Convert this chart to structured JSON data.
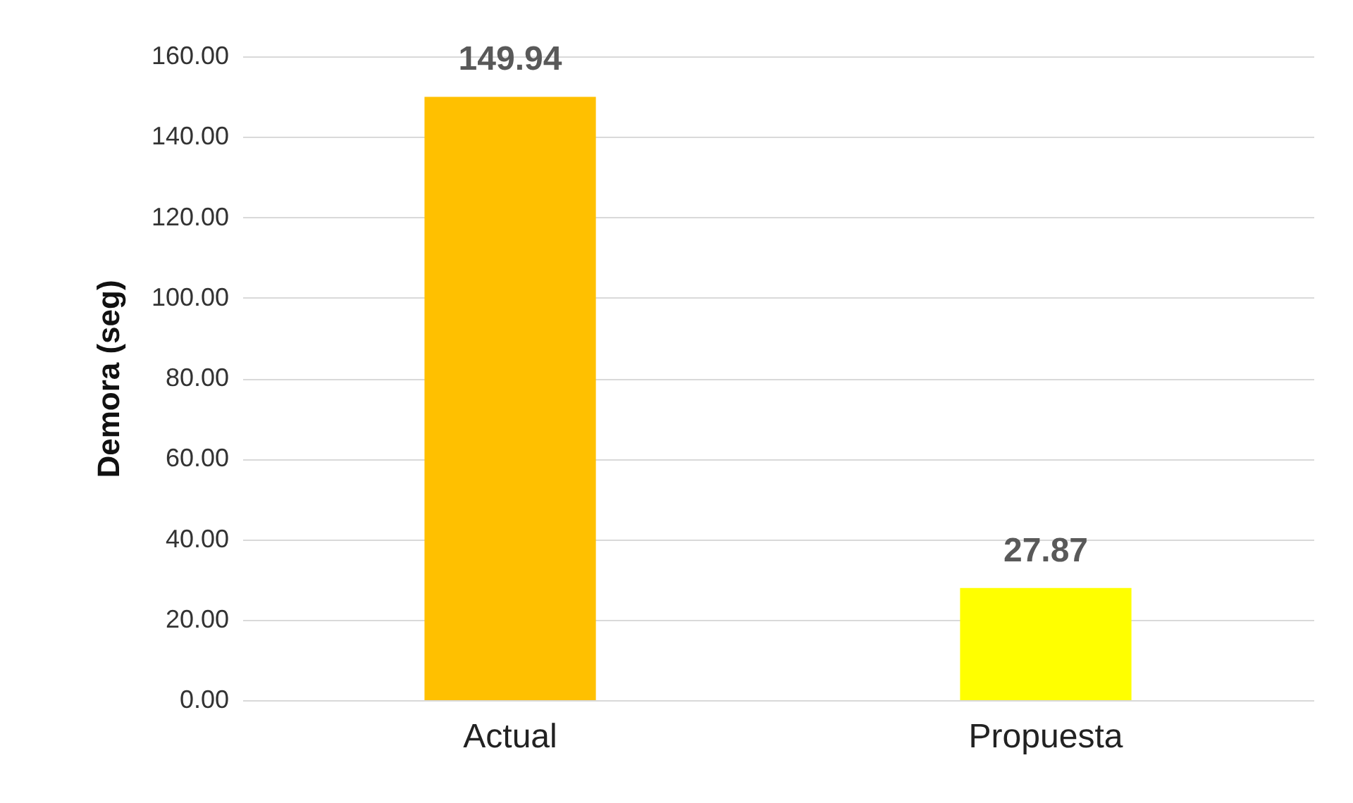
{
  "chart_data": {
    "type": "bar",
    "ylabel": "Demora (seg)",
    "categories": [
      "Actual",
      "Propuesta"
    ],
    "values": [
      149.94,
      27.87
    ],
    "colors": [
      "#ffc000",
      "#ffff00"
    ],
    "ylim": [
      0,
      160
    ],
    "yticks": [
      {
        "value": 0,
        "label": "0.00"
      },
      {
        "value": 20,
        "label": "20.00"
      },
      {
        "value": 40,
        "label": "40.00"
      },
      {
        "value": 60,
        "label": "60.00"
      },
      {
        "value": 80,
        "label": "80.00"
      },
      {
        "value": 100,
        "label": "100.00"
      },
      {
        "value": 120,
        "label": "120.00"
      },
      {
        "value": 140,
        "label": "140.00"
      },
      {
        "value": 160,
        "label": "160.00"
      }
    ],
    "grid": "y",
    "data_labels": true
  }
}
